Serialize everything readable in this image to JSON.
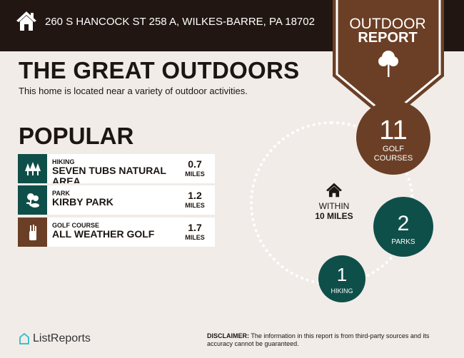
{
  "header": {
    "address": "260 S HANCOCK ST 258 A, WILKES-BARRE, PA 18702",
    "badge_line1": "OUTDOOR",
    "badge_line2": "REPORT"
  },
  "title": "THE GREAT OUTDOORS",
  "subtitle": "This home is located near a variety of outdoor activities.",
  "popular": {
    "heading": "POPULAR",
    "items": [
      {
        "category": "HIKING",
        "name": "SEVEN TUBS NATURAL AREA",
        "distance": "0.7",
        "unit": "MILES",
        "icon": "trees-icon",
        "color": "#0f4f4a"
      },
      {
        "category": "PARK",
        "name": "KIRBY PARK",
        "distance": "1.2",
        "unit": "MILES",
        "icon": "park-icon",
        "color": "#0f4f4a"
      },
      {
        "category": "GOLF COURSE",
        "name": "ALL WEATHER GOLF",
        "distance": "1.7",
        "unit": "MILES",
        "icon": "golf-bag-icon",
        "color": "#6b3f26"
      }
    ]
  },
  "summary": {
    "within_line1": "WITHIN",
    "within_line2": "10 MILES",
    "counts": [
      {
        "count": "11",
        "label": "GOLF COURSES"
      },
      {
        "count": "2",
        "label": "PARKS"
      },
      {
        "count": "1",
        "label": "HIKING"
      }
    ]
  },
  "footer": {
    "brand": "ListReports",
    "disclaimer_label": "DISCLAIMER:",
    "disclaimer_text": " The information in this report is from third-party sources and its accuracy cannot be guaranteed."
  },
  "colors": {
    "dark": "#211612",
    "brown": "#6b3f26",
    "teal": "#0f4f4a",
    "bg": "#f1ece8"
  }
}
